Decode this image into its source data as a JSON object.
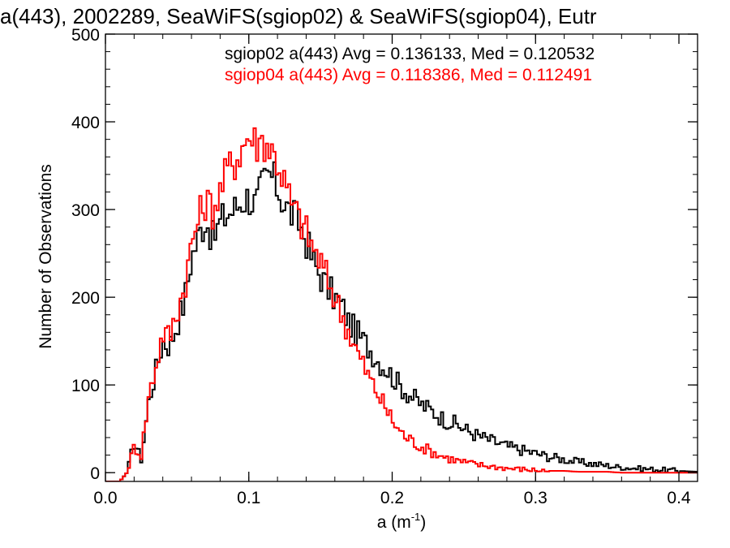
{
  "chart_data": {
    "type": "histogram-step",
    "title": "a(443), 2002289, SeaWiFS(sgiop02) & SeaWiFS(sgiop04), Eutr",
    "xlabel": {
      "base": "a (m",
      "superscript": "-1",
      "close": ")"
    },
    "ylabel": "Number of Observations",
    "xlim": [
      0.0,
      0.413
    ],
    "ylim": [
      -10,
      500
    ],
    "xticks": [
      0.0,
      0.1,
      0.2,
      0.3,
      0.4
    ],
    "xtick_labels": [
      "0.0",
      "0.1",
      "0.2",
      "0.3",
      "0.4"
    ],
    "xminor_step": 0.02,
    "yticks": [
      0,
      100,
      200,
      300,
      400,
      500
    ],
    "ytick_labels": [
      "0",
      "100",
      "200",
      "300",
      "400",
      "500"
    ],
    "yminor_step": 20,
    "grid": false,
    "annotations": [
      {
        "text": "sgiop02 a(443) Avg = 0.136133, Med = 0.120532",
        "color": "#000000"
      },
      {
        "text": "sgiop04 a(443) Avg = 0.118386, Med = 0.112491",
        "color": "#ff0000"
      }
    ],
    "series": [
      {
        "color": "#000000",
        "x": [
          0.0,
          0.01,
          0.015,
          0.02,
          0.025,
          0.03,
          0.035,
          0.04,
          0.045,
          0.05,
          0.055,
          0.06,
          0.065,
          0.07,
          0.075,
          0.08,
          0.085,
          0.09,
          0.095,
          0.1,
          0.105,
          0.11,
          0.115,
          0.12,
          0.125,
          0.13,
          0.135,
          0.14,
          0.145,
          0.15,
          0.155,
          0.16,
          0.165,
          0.17,
          0.175,
          0.18,
          0.185,
          0.19,
          0.195,
          0.2,
          0.205,
          0.21,
          0.215,
          0.22,
          0.225,
          0.23,
          0.235,
          0.24,
          0.245,
          0.25,
          0.26,
          0.27,
          0.28,
          0.29,
          0.3,
          0.31,
          0.32,
          0.33,
          0.34,
          0.35,
          0.36,
          0.37,
          0.38,
          0.39,
          0.4,
          0.413
        ],
        "y": [
          -10,
          -10,
          0,
          35,
          15,
          80,
          115,
          150,
          145,
          170,
          195,
          245,
          270,
          290,
          265,
          285,
          295,
          300,
          310,
          315,
          305,
          330,
          340,
          325,
          305,
          295,
          285,
          265,
          240,
          225,
          210,
          200,
          190,
          170,
          160,
          150,
          140,
          128,
          120,
          110,
          100,
          92,
          85,
          78,
          73,
          68,
          62,
          58,
          55,
          50,
          42,
          36,
          30,
          26,
          22,
          18,
          15,
          12,
          10,
          8,
          6,
          5,
          4,
          3,
          2,
          1
        ]
      },
      {
        "color": "#ff0000",
        "x": [
          0.0,
          0.01,
          0.015,
          0.02,
          0.025,
          0.03,
          0.035,
          0.04,
          0.045,
          0.05,
          0.055,
          0.06,
          0.065,
          0.07,
          0.075,
          0.08,
          0.085,
          0.09,
          0.095,
          0.1,
          0.105,
          0.11,
          0.115,
          0.12,
          0.125,
          0.13,
          0.135,
          0.14,
          0.145,
          0.15,
          0.155,
          0.16,
          0.165,
          0.17,
          0.175,
          0.18,
          0.185,
          0.19,
          0.195,
          0.2,
          0.205,
          0.21,
          0.215,
          0.22,
          0.225,
          0.23,
          0.235,
          0.24,
          0.245,
          0.25,
          0.26,
          0.27,
          0.28,
          0.29,
          0.3,
          0.31,
          0.32,
          0.33,
          0.34,
          0.35,
          0.36,
          0.37,
          0.38,
          0.39,
          0.4,
          0.413
        ],
        "y": [
          -10,
          -10,
          0,
          30,
          20,
          85,
          120,
          160,
          155,
          185,
          210,
          260,
          290,
          310,
          300,
          320,
          345,
          355,
          370,
          385,
          375,
          380,
          370,
          355,
          330,
          305,
          290,
          275,
          255,
          240,
          220,
          200,
          180,
          160,
          140,
          122,
          105,
          90,
          75,
          60,
          48,
          40,
          35,
          30,
          26,
          22,
          19,
          16,
          14,
          12,
          9,
          7,
          5,
          4,
          3,
          2,
          2,
          1,
          1,
          1,
          0,
          0,
          0,
          0,
          0,
          0
        ]
      }
    ]
  }
}
